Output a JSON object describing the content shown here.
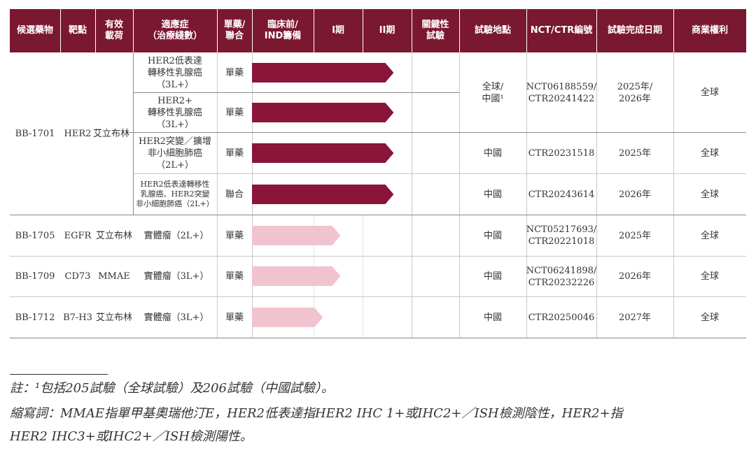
{
  "header": {
    "candidate": "候選藥物",
    "target": "靶點",
    "payload": "有效\n載荷",
    "indication": "適應症\n（治療綫數）",
    "regimen": "單藥/\n聯合",
    "preclinical": "臨床前/\nIND籌備",
    "phase1": "I期",
    "phase2": "II期",
    "pivotal": "關鍵性\n試驗",
    "site": "試驗地點",
    "nct": "NCT/CTR編號",
    "completion": "試驗完成日期",
    "rights": "商業權利"
  },
  "bb1701": {
    "candidate": "BB-1701",
    "target": "HER2",
    "payload": "艾立布林",
    "rows": [
      {
        "indication": "HER2低表達\n轉移性乳腺癌\n（3L+）",
        "regimen": "單藥",
        "progress": 0.8
      },
      {
        "indication": "HER2+\n轉移性乳腺癌\n（3L+）",
        "regimen": "單藥",
        "progress": 0.8
      },
      {
        "indication": "HER2突變／擴增\n非小細胞肺癌\n（2L+）",
        "regimen": "單藥",
        "progress": 0.8,
        "site": "中國",
        "nct": "CTR20231518",
        "completion": "2025年",
        "rights": "全球"
      },
      {
        "indication": "HER2低表達轉移性\n乳腺癌、HER2突變\n非小細胞肺癌（2L+）",
        "regimen": "聯合",
        "progress": 0.8,
        "site": "中國",
        "nct": "CTR20243614",
        "completion": "2026年",
        "rights": "全球"
      }
    ],
    "merged": {
      "site": "全球/\n中國¹",
      "nct": "NCT06188559/\nCTR20241422",
      "completion": "2025年/\n2026年",
      "rights": "全球"
    }
  },
  "others": [
    {
      "candidate": "BB-1705",
      "target": "EGFR",
      "payload": "艾立布林",
      "indication": "實體瘤（2L+）",
      "regimen": "單藥",
      "progress": 0.5,
      "site": "中國",
      "nct": "NCT05217693/\nCTR20221018",
      "completion": "2025年",
      "rights": "全球"
    },
    {
      "candidate": "BB-1709",
      "target": "CD73",
      "payload": "MMAE",
      "indication": "實體瘤（3L+）",
      "regimen": "單藥",
      "progress": 0.5,
      "site": "中國",
      "nct": "NCT06241898/\nCTR20232226",
      "completion": "2026年",
      "rights": "全球"
    },
    {
      "candidate": "BB-1712",
      "target": "B7-H3",
      "payload": "艾立布林",
      "indication": "實體瘤（3L+）",
      "regimen": "單藥",
      "progress": 0.4,
      "site": "中國",
      "nct": "CTR20250046",
      "completion": "2027年",
      "rights": "全球"
    }
  ],
  "colors": {
    "header": "#7a1731",
    "bar_dark": "#8a1538",
    "bar_light": "#f1c3cf"
  },
  "footnote": {
    "line1": "註：¹包括205試驗（全球試驗）及206試驗（中國試驗）。",
    "line2": "縮寫詞：MMAE指單甲基奧瑞他汀E，HER2低表達指HER2 IHC 1+或IHC2+／ISH檢測陰性，HER2+指",
    "line3": "HER2 IHC3+或IHC2+／ISH檢測陽性。"
  }
}
